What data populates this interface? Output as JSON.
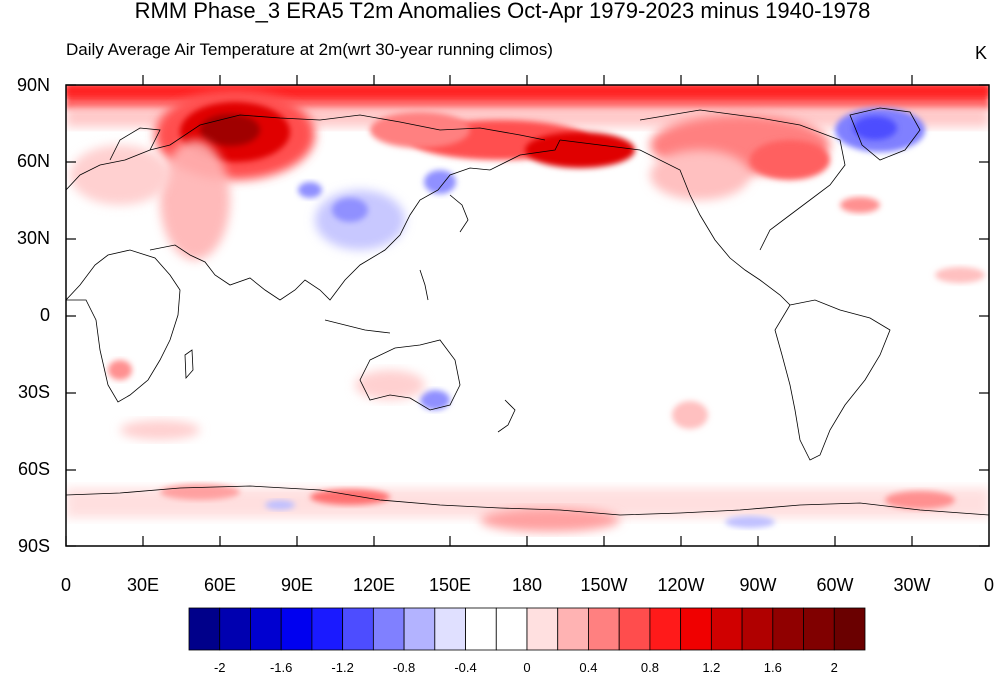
{
  "title": "RMM Phase_3 ERA5 T2m Anomalies Oct-Apr 1979-2023 minus 1940-1978",
  "subtitle_left": "Daily Average Air Temperature at 2m(wrt 30-year running climos)",
  "subtitle_right": "K",
  "lat_labels": [
    "90N",
    "60N",
    "30N",
    "0",
    "30S",
    "60S",
    "90S"
  ],
  "lon_labels": [
    "0",
    "30E",
    "60E",
    "90E",
    "120E",
    "150E",
    "180",
    "150W",
    "120W",
    "90W",
    "60W",
    "30W",
    "0"
  ],
  "colorbar": {
    "colors": [
      "#00008a",
      "#0000b0",
      "#0000d0",
      "#0000f0",
      "#1a1aff",
      "#4d4dff",
      "#8080ff",
      "#b3b3ff",
      "#e0e0ff",
      "#ffffff",
      "#ffffff",
      "#ffe0e0",
      "#ffb3b3",
      "#ff8080",
      "#ff4d4d",
      "#ff1a1a",
      "#f00000",
      "#d00000",
      "#b00000",
      "#900000",
      "#800000",
      "#6a0000"
    ],
    "tick_labels": [
      "-2",
      "-1.6",
      "-1.2",
      "-0.8",
      "-0.4",
      "0",
      "0.4",
      "0.8",
      "1.2",
      "1.6",
      "2"
    ]
  }
}
